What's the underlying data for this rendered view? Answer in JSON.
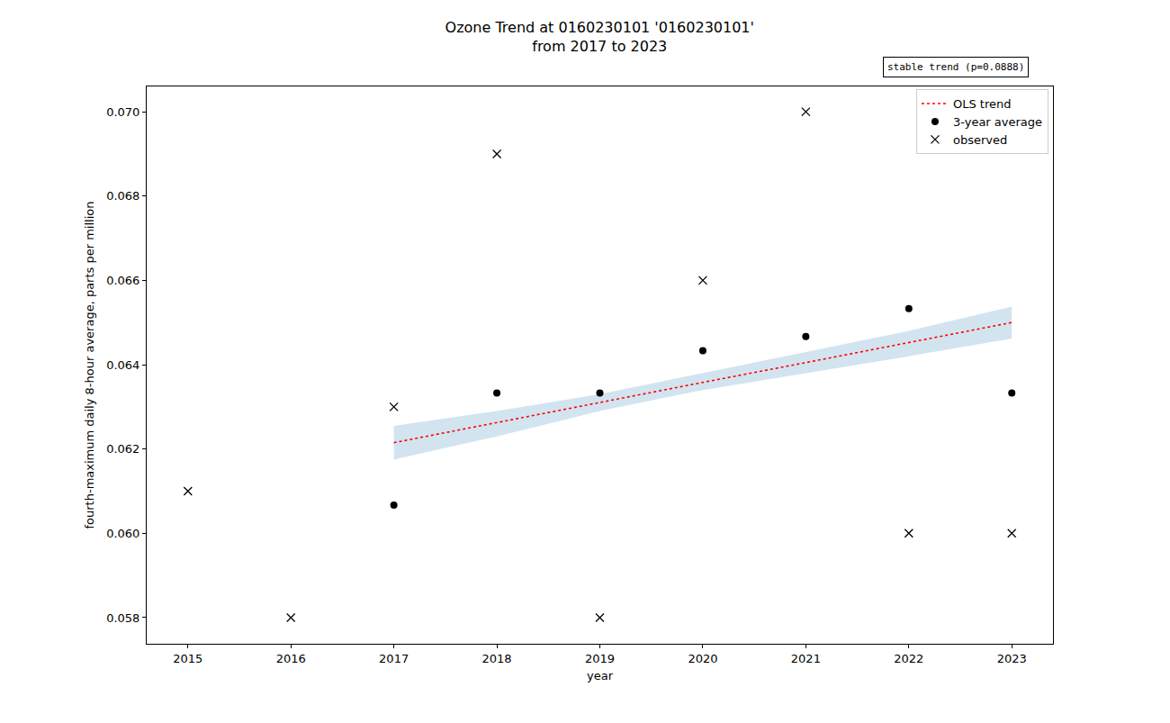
{
  "chart_data": {
    "type": "scatter",
    "title": "Ozone Trend at 0160230101 '0160230101'",
    "subtitle": "from 2017 to 2023",
    "annotation": "stable trend (p=0.0888)",
    "x_label": "year",
    "y_label": "fourth-maximum daily 8-hour average, parts per million",
    "legend": "upper right",
    "grid": false,
    "xlim": [
      2014.6,
      2023.4
    ],
    "xticks": [
      2015,
      2016,
      2017,
      2018,
      2019,
      2020,
      2021,
      2022,
      2023
    ],
    "ylim": [
      0.05738,
      0.0706
    ],
    "yticks": [
      0.058,
      {
        "value": 0.06,
        "label": "0.060"
      },
      0.062,
      0.064,
      0.066,
      0.068,
      {
        "value": 0.07,
        "label": "0.070"
      }
    ],
    "series": [
      {
        "name": "observed",
        "type": "scatter",
        "marker": "x",
        "color": "#000000",
        "x": [
          2015,
          2016,
          2017,
          2018,
          2019,
          2020,
          2021,
          2022,
          2023
        ],
        "values": [
          0.061,
          0.058,
          0.063,
          0.069,
          0.058,
          0.066,
          0.07,
          0.06,
          0.06
        ]
      },
      {
        "name": "3-year average",
        "type": "scatter",
        "marker": "circle",
        "color": "#000000",
        "x": [
          2017,
          2018,
          2019,
          2020,
          2021,
          2022,
          2023
        ],
        "values": [
          0.06067,
          0.06333,
          0.06333,
          0.06433,
          0.06467,
          0.06533,
          0.06333
        ]
      },
      {
        "name": "OLS trend",
        "type": "line",
        "line_style": "dotted",
        "color": "#ff0000",
        "x": [
          2017,
          2018,
          2019,
          2020,
          2021,
          2022,
          2023
        ],
        "values": [
          0.06215,
          0.06263,
          0.0631,
          0.06358,
          0.06405,
          0.06453,
          0.065
        ],
        "ci_lower": [
          0.06175,
          0.0623,
          0.0629,
          0.0634,
          0.0638,
          0.0642,
          0.06462
        ],
        "ci_upper": [
          0.06255,
          0.0629,
          0.0633,
          0.0638,
          0.0643,
          0.0648,
          0.06538
        ]
      }
    ]
  }
}
